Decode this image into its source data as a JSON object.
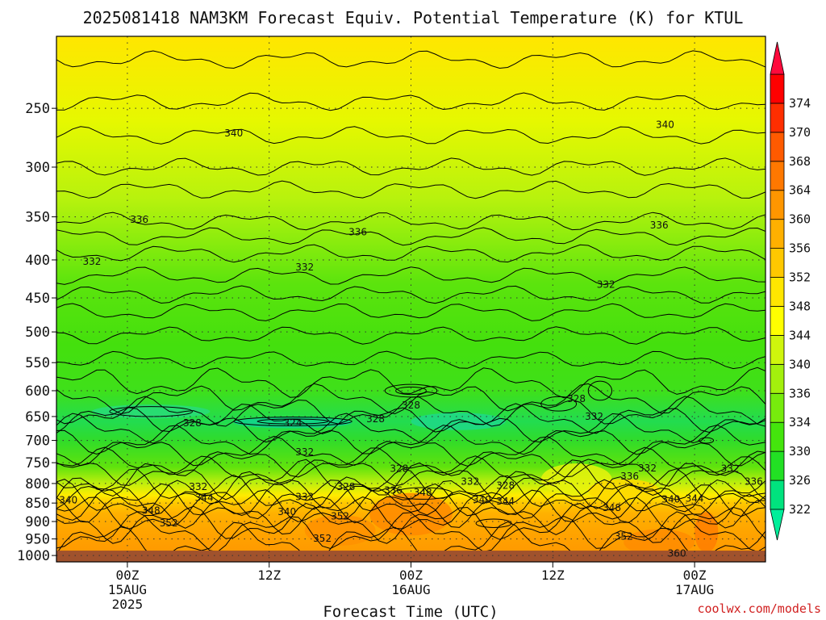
{
  "chart_data": {
    "type": "heatmap",
    "title": "2025081418 NAM3KM Forecast Equiv. Potential Temperature (K) for KTUL",
    "xlabel": "Forecast Time (UTC)",
    "ylabel": "",
    "x_ticks": [
      {
        "hour": 6,
        "lines": [
          "00Z",
          "15AUG",
          "2025"
        ]
      },
      {
        "hour": 18,
        "lines": [
          "12Z"
        ]
      },
      {
        "hour": 30,
        "lines": [
          "00Z",
          "16AUG"
        ]
      },
      {
        "hour": 42,
        "lines": [
          "12Z"
        ]
      },
      {
        "hour": 54,
        "lines": [
          "00Z",
          "17AUG"
        ]
      }
    ],
    "xlim": [
      0,
      60
    ],
    "y_ticks": [
      250,
      300,
      350,
      400,
      450,
      500,
      550,
      600,
      650,
      700,
      750,
      800,
      850,
      900,
      950,
      1000
    ],
    "ylim": [
      200,
      1020
    ],
    "y_scale": "log",
    "grid": true,
    "colorbar": {
      "labels": [
        322,
        326,
        330,
        334,
        336,
        340,
        344,
        348,
        352,
        356,
        360,
        364,
        368,
        370,
        374
      ],
      "colors": [
        "#00e37e",
        "#22e024",
        "#44e50d",
        "#77ec0d",
        "#a3f00d",
        "#cff50d",
        "#ffff00",
        "#ffe600",
        "#ffc800",
        "#ffb000",
        "#ff9600",
        "#ff7800",
        "#ff5a00",
        "#ff2e00",
        "#ff0000"
      ],
      "below_color": "#00ee9a",
      "above_color": "#ff0a3c",
      "arrows": true
    },
    "terrain_color": "#a0522d",
    "contour_labels": [
      {
        "text": "340",
        "hour": 15,
        "p": 270
      },
      {
        "text": "340",
        "hour": 51.5,
        "p": 263
      },
      {
        "text": "336",
        "hour": 7,
        "p": 353
      },
      {
        "text": "336",
        "hour": 25.5,
        "p": 367
      },
      {
        "text": "336",
        "hour": 51,
        "p": 359
      },
      {
        "text": "332",
        "hour": 3,
        "p": 402
      },
      {
        "text": "332",
        "hour": 21,
        "p": 409
      },
      {
        "text": "332",
        "hour": 46.5,
        "p": 432
      },
      {
        "text": "328",
        "hour": 11.5,
        "p": 663
      },
      {
        "text": "324",
        "hour": 20,
        "p": 663
      },
      {
        "text": "328",
        "hour": 27,
        "p": 655
      },
      {
        "text": "328",
        "hour": 30,
        "p": 628
      },
      {
        "text": "328",
        "hour": 44,
        "p": 615
      },
      {
        "text": "332",
        "hour": 45.5,
        "p": 650
      },
      {
        "text": "332",
        "hour": 21,
        "p": 726
      },
      {
        "text": "328",
        "hour": 29,
        "p": 764
      },
      {
        "text": "332",
        "hour": 12,
        "p": 808
      },
      {
        "text": "344",
        "hour": 12.5,
        "p": 836
      },
      {
        "text": "332",
        "hour": 21,
        "p": 834
      },
      {
        "text": "340",
        "hour": 1,
        "p": 842
      },
      {
        "text": "348",
        "hour": 8,
        "p": 870
      },
      {
        "text": "352",
        "hour": 9.5,
        "p": 905
      },
      {
        "text": "340",
        "hour": 19.5,
        "p": 873
      },
      {
        "text": "328",
        "hour": 24.5,
        "p": 808
      },
      {
        "text": "336",
        "hour": 28.5,
        "p": 817
      },
      {
        "text": "348",
        "hour": 31,
        "p": 822
      },
      {
        "text": "332",
        "hour": 35,
        "p": 795
      },
      {
        "text": "340",
        "hour": 36,
        "p": 841
      },
      {
        "text": "344",
        "hour": 38,
        "p": 845
      },
      {
        "text": "328",
        "hour": 38,
        "p": 805
      },
      {
        "text": "352",
        "hour": 24,
        "p": 885
      },
      {
        "text": "352",
        "hour": 22.5,
        "p": 949
      },
      {
        "text": "336",
        "hour": 48.5,
        "p": 782
      },
      {
        "text": "332",
        "hour": 50,
        "p": 763
      },
      {
        "text": "348",
        "hour": 47,
        "p": 862
      },
      {
        "text": "340",
        "hour": 52,
        "p": 840
      },
      {
        "text": "344",
        "hour": 54,
        "p": 838
      },
      {
        "text": "352",
        "hour": 48,
        "p": 943
      },
      {
        "text": "360",
        "hour": 52.5,
        "p": 993
      },
      {
        "text": "332",
        "hour": 57,
        "p": 764
      },
      {
        "text": "336",
        "hour": 59,
        "p": 795
      }
    ]
  },
  "footer": {
    "credit": "coolwx.com/models"
  }
}
